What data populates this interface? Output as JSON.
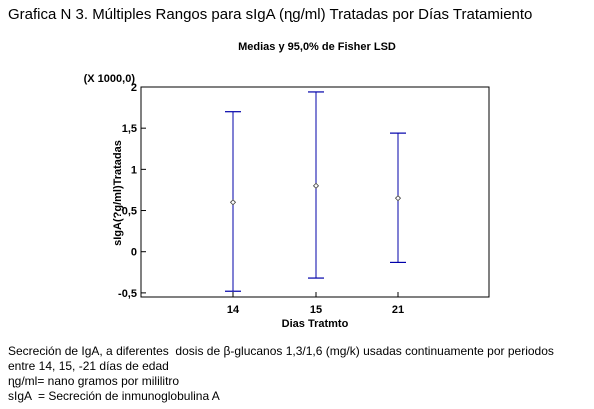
{
  "figure": {
    "title": "Grafica N 3. Múltiples Rangos para sIgA (ɳg/ml) Tratadas por Días Tratamiento"
  },
  "chart_data": {
    "type": "interval",
    "title": "Medias y 95,0% de Fisher LSD",
    "ylabel": "sIgA(?g/ml)Tratadas",
    "xlabel": "Dias Tratmto",
    "y_scale_note": "(X 1000,0)",
    "ylim": [
      -0.55,
      2.0
    ],
    "yticks": [
      -0.5,
      0,
      0.5,
      1,
      1.5,
      2
    ],
    "ytick_labels": [
      "-0,5",
      "0",
      "0,5",
      "1",
      "1,5",
      "2"
    ],
    "grid": false,
    "colors": {
      "interval": "#0000aa",
      "mean_marker": "#444444",
      "axis": "#000000"
    },
    "categories": [
      "14",
      "15",
      "21"
    ],
    "means": [
      0.6,
      0.8,
      0.65
    ],
    "lower": [
      -0.48,
      -0.32,
      -0.13
    ],
    "upper": [
      1.7,
      1.94,
      1.44
    ]
  },
  "caption": {
    "lines": [
      "Secreción de IgA, a diferentes  dosis de β-glucanos 1,3/1,6 (mg/k) usadas continuamente por periodos",
      "entre 14, 15, -21 días de edad",
      "ɳg/ml= nano gramos por mililitro",
      "sIgA  = Secreción de inmunoglobulina A"
    ]
  }
}
